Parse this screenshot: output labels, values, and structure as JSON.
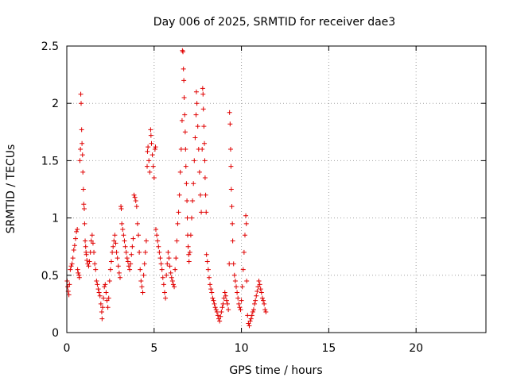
{
  "chart_data": {
    "type": "scatter",
    "title": "Day 006 of 2025, SRMTID for receiver dae3",
    "xlabel": "GPS time / hours",
    "ylabel": "SRMTID / TECUs",
    "xlim": [
      0,
      24
    ],
    "ylim": [
      0,
      2.5
    ],
    "x_ticks": [
      0,
      5,
      10,
      15,
      20
    ],
    "x_tick_labels": [
      "0",
      "5",
      "10",
      "15",
      "20"
    ],
    "y_ticks": [
      0,
      0.5,
      1,
      1.5,
      2,
      2.5
    ],
    "y_tick_labels": [
      "0",
      "0.5",
      "1",
      "1.5",
      "2",
      "2.5"
    ],
    "grid": true,
    "marker": "+",
    "color": "#e00000",
    "series": [
      {
        "name": "SRMTID",
        "points": [
          [
            0.02,
            0.45
          ],
          [
            0.05,
            0.4
          ],
          [
            0.08,
            0.36
          ],
          [
            0.12,
            0.33
          ],
          [
            0.15,
            0.42
          ],
          [
            0.2,
            0.55
          ],
          [
            0.25,
            0.58
          ],
          [
            0.3,
            0.6
          ],
          [
            0.35,
            0.65
          ],
          [
            0.4,
            0.72
          ],
          [
            0.45,
            0.76
          ],
          [
            0.5,
            0.82
          ],
          [
            0.55,
            0.88
          ],
          [
            0.6,
            0.9
          ],
          [
            0.62,
            0.55
          ],
          [
            0.65,
            0.52
          ],
          [
            0.7,
            0.5
          ],
          [
            0.72,
            0.48
          ],
          [
            0.75,
            1.5
          ],
          [
            0.78,
            1.6
          ],
          [
            0.8,
            2.08
          ],
          [
            0.82,
            2.0
          ],
          [
            0.85,
            1.77
          ],
          [
            0.87,
            1.65
          ],
          [
            0.9,
            1.55
          ],
          [
            0.92,
            1.4
          ],
          [
            0.95,
            1.25
          ],
          [
            0.97,
            1.12
          ],
          [
            1.0,
            1.08
          ],
          [
            1.02,
            0.95
          ],
          [
            1.05,
            0.8
          ],
          [
            1.08,
            0.75
          ],
          [
            1.1,
            0.7
          ],
          [
            1.12,
            0.68
          ],
          [
            1.15,
            0.63
          ],
          [
            1.2,
            0.6
          ],
          [
            1.25,
            0.58
          ],
          [
            1.3,
            0.62
          ],
          [
            1.35,
            0.7
          ],
          [
            1.4,
            0.8
          ],
          [
            1.45,
            0.85
          ],
          [
            1.5,
            0.78
          ],
          [
            1.55,
            0.7
          ],
          [
            1.6,
            0.6
          ],
          [
            1.65,
            0.55
          ],
          [
            1.7,
            0.45
          ],
          [
            1.75,
            0.42
          ],
          [
            1.8,
            0.38
          ],
          [
            1.85,
            0.35
          ],
          [
            1.9,
            0.32
          ],
          [
            1.95,
            0.25
          ],
          [
            2.0,
            0.18
          ],
          [
            2.02,
            0.12
          ],
          [
            2.05,
            0.22
          ],
          [
            2.1,
            0.3
          ],
          [
            2.15,
            0.4
          ],
          [
            2.2,
            0.42
          ],
          [
            2.25,
            0.35
          ],
          [
            2.3,
            0.28
          ],
          [
            2.35,
            0.22
          ],
          [
            2.4,
            0.3
          ],
          [
            2.45,
            0.45
          ],
          [
            2.5,
            0.55
          ],
          [
            2.55,
            0.62
          ],
          [
            2.6,
            0.7
          ],
          [
            2.65,
            0.75
          ],
          [
            2.7,
            0.8
          ],
          [
            2.75,
            0.85
          ],
          [
            2.8,
            0.78
          ],
          [
            2.85,
            0.7
          ],
          [
            2.9,
            0.65
          ],
          [
            2.95,
            0.58
          ],
          [
            3.0,
            0.52
          ],
          [
            3.05,
            0.48
          ],
          [
            3.1,
            1.1
          ],
          [
            3.12,
            1.08
          ],
          [
            3.15,
            0.95
          ],
          [
            3.2,
            0.9
          ],
          [
            3.25,
            0.85
          ],
          [
            3.3,
            0.8
          ],
          [
            3.35,
            0.75
          ],
          [
            3.4,
            0.7
          ],
          [
            3.45,
            0.65
          ],
          [
            3.5,
            0.62
          ],
          [
            3.55,
            0.58
          ],
          [
            3.6,
            0.55
          ],
          [
            3.65,
            0.6
          ],
          [
            3.7,
            0.68
          ],
          [
            3.75,
            0.75
          ],
          [
            3.8,
            0.82
          ],
          [
            3.85,
            1.2
          ],
          [
            3.9,
            1.18
          ],
          [
            3.95,
            1.15
          ],
          [
            4.0,
            1.1
          ],
          [
            4.05,
            0.95
          ],
          [
            4.1,
            0.85
          ],
          [
            4.15,
            0.7
          ],
          [
            4.2,
            0.55
          ],
          [
            4.25,
            0.45
          ],
          [
            4.3,
            0.4
          ],
          [
            4.35,
            0.35
          ],
          [
            4.4,
            0.5
          ],
          [
            4.45,
            0.6
          ],
          [
            4.5,
            0.7
          ],
          [
            4.55,
            0.8
          ],
          [
            4.6,
            1.45
          ],
          [
            4.62,
            1.58
          ],
          [
            4.65,
            1.62
          ],
          [
            4.7,
            1.5
          ],
          [
            4.75,
            1.4
          ],
          [
            4.8,
            1.77
          ],
          [
            4.82,
            1.72
          ],
          [
            4.85,
            1.65
          ],
          [
            4.9,
            1.55
          ],
          [
            4.95,
            1.45
          ],
          [
            5.0,
            1.35
          ],
          [
            5.05,
            1.6
          ],
          [
            5.08,
            1.62
          ],
          [
            5.1,
            0.9
          ],
          [
            5.15,
            0.85
          ],
          [
            5.2,
            0.8
          ],
          [
            5.25,
            0.75
          ],
          [
            5.3,
            0.7
          ],
          [
            5.35,
            0.65
          ],
          [
            5.4,
            0.6
          ],
          [
            5.45,
            0.55
          ],
          [
            5.5,
            0.48
          ],
          [
            5.55,
            0.42
          ],
          [
            5.6,
            0.35
          ],
          [
            5.65,
            0.3
          ],
          [
            5.7,
            0.5
          ],
          [
            5.75,
            0.6
          ],
          [
            5.8,
            0.7
          ],
          [
            5.85,
            0.65
          ],
          [
            5.9,
            0.58
          ],
          [
            5.95,
            0.52
          ],
          [
            6.0,
            0.48
          ],
          [
            6.05,
            0.45
          ],
          [
            6.1,
            0.42
          ],
          [
            6.15,
            0.4
          ],
          [
            6.2,
            0.55
          ],
          [
            6.25,
            0.65
          ],
          [
            6.3,
            0.8
          ],
          [
            6.35,
            0.95
          ],
          [
            6.4,
            1.05
          ],
          [
            6.45,
            1.2
          ],
          [
            6.5,
            1.4
          ],
          [
            6.55,
            1.6
          ],
          [
            6.6,
            1.85
          ],
          [
            6.62,
            2.46
          ],
          [
            6.65,
            2.45
          ],
          [
            6.68,
            2.3
          ],
          [
            6.7,
            2.2
          ],
          [
            6.72,
            2.05
          ],
          [
            6.75,
            1.9
          ],
          [
            6.78,
            1.75
          ],
          [
            6.8,
            1.6
          ],
          [
            6.82,
            1.45
          ],
          [
            6.85,
            1.3
          ],
          [
            6.88,
            1.15
          ],
          [
            6.9,
            1.0
          ],
          [
            6.92,
            0.85
          ],
          [
            6.95,
            0.75
          ],
          [
            6.98,
            0.68
          ],
          [
            7.0,
            0.62
          ],
          [
            7.05,
            0.7
          ],
          [
            7.1,
            0.85
          ],
          [
            7.15,
            1.0
          ],
          [
            7.2,
            1.15
          ],
          [
            7.25,
            1.3
          ],
          [
            7.3,
            1.5
          ],
          [
            7.35,
            1.7
          ],
          [
            7.4,
            1.9
          ],
          [
            7.42,
            2.1
          ],
          [
            7.45,
            2.0
          ],
          [
            7.5,
            1.8
          ],
          [
            7.55,
            1.6
          ],
          [
            7.6,
            1.4
          ],
          [
            7.65,
            1.2
          ],
          [
            7.7,
            1.05
          ],
          [
            7.75,
            1.6
          ],
          [
            7.78,
            2.13
          ],
          [
            7.8,
            2.08
          ],
          [
            7.82,
            1.95
          ],
          [
            7.85,
            1.8
          ],
          [
            7.88,
            1.65
          ],
          [
            7.9,
            1.5
          ],
          [
            7.92,
            1.35
          ],
          [
            7.95,
            1.2
          ],
          [
            7.98,
            1.05
          ],
          [
            8.0,
            0.68
          ],
          [
            8.05,
            0.62
          ],
          [
            8.1,
            0.55
          ],
          [
            8.15,
            0.48
          ],
          [
            8.2,
            0.42
          ],
          [
            8.25,
            0.38
          ],
          [
            8.3,
            0.35
          ],
          [
            8.35,
            0.3
          ],
          [
            8.4,
            0.28
          ],
          [
            8.45,
            0.25
          ],
          [
            8.5,
            0.22
          ],
          [
            8.55,
            0.2
          ],
          [
            8.6,
            0.18
          ],
          [
            8.65,
            0.15
          ],
          [
            8.7,
            0.12
          ],
          [
            8.75,
            0.1
          ],
          [
            8.8,
            0.14
          ],
          [
            8.85,
            0.18
          ],
          [
            8.9,
            0.22
          ],
          [
            8.95,
            0.25
          ],
          [
            9.0,
            0.3
          ],
          [
            9.05,
            0.35
          ],
          [
            9.1,
            0.32
          ],
          [
            9.15,
            0.28
          ],
          [
            9.2,
            0.25
          ],
          [
            9.25,
            0.2
          ],
          [
            9.3,
            0.6
          ],
          [
            9.32,
            1.92
          ],
          [
            9.35,
            1.82
          ],
          [
            9.38,
            1.6
          ],
          [
            9.4,
            1.45
          ],
          [
            9.42,
            1.25
          ],
          [
            9.45,
            1.1
          ],
          [
            9.48,
            0.95
          ],
          [
            9.5,
            0.8
          ],
          [
            9.55,
            0.6
          ],
          [
            9.6,
            0.5
          ],
          [
            9.65,
            0.45
          ],
          [
            9.7,
            0.4
          ],
          [
            9.75,
            0.35
          ],
          [
            9.8,
            0.3
          ],
          [
            9.85,
            0.25
          ],
          [
            9.9,
            0.22
          ],
          [
            9.95,
            0.2
          ],
          [
            10.0,
            0.28
          ],
          [
            10.05,
            0.4
          ],
          [
            10.1,
            0.55
          ],
          [
            10.15,
            0.7
          ],
          [
            10.2,
            0.85
          ],
          [
            10.25,
            1.02
          ],
          [
            10.28,
            0.95
          ],
          [
            10.3,
            0.45
          ],
          [
            10.35,
            0.15
          ],
          [
            10.4,
            0.08
          ],
          [
            10.45,
            0.06
          ],
          [
            10.5,
            0.1
          ],
          [
            10.55,
            0.12
          ],
          [
            10.6,
            0.15
          ],
          [
            10.65,
            0.18
          ],
          [
            10.7,
            0.2
          ],
          [
            10.75,
            0.25
          ],
          [
            10.8,
            0.28
          ],
          [
            10.85,
            0.32
          ],
          [
            10.9,
            0.36
          ],
          [
            10.95,
            0.4
          ],
          [
            11.0,
            0.45
          ],
          [
            11.05,
            0.42
          ],
          [
            11.1,
            0.38
          ],
          [
            11.15,
            0.35
          ],
          [
            11.2,
            0.3
          ],
          [
            11.25,
            0.28
          ],
          [
            11.3,
            0.25
          ],
          [
            11.35,
            0.2
          ],
          [
            11.4,
            0.18
          ]
        ]
      }
    ]
  }
}
